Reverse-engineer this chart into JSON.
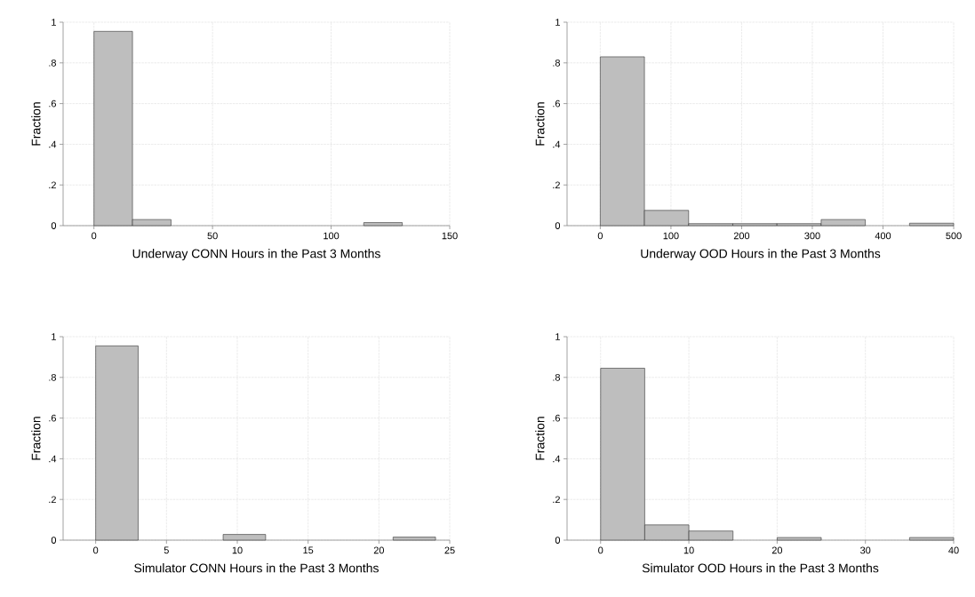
{
  "chart_data": [
    {
      "type": "histogram",
      "xlabel": "Underway CONN Hours in the Past 3 Months",
      "ylabel": "Fraction",
      "color": "#bebebe",
      "grid": true,
      "bins": [
        0,
        16.25,
        32.5,
        48.75,
        65,
        81.25,
        97.5,
        113.75,
        130
      ],
      "values": [
        0.955,
        0.03,
        0,
        0,
        0,
        0,
        0,
        0.015
      ],
      "xlim": [
        -13,
        150
      ],
      "xticks": [
        0,
        50,
        100,
        150
      ],
      "ylim": [
        0,
        1
      ],
      "yticks": [
        0,
        {
          "value": 0.2,
          "label": ".2"
        },
        {
          "value": 0.4,
          "label": ".4"
        },
        {
          "value": 0.6,
          "label": ".6"
        },
        {
          "value": 0.8,
          "label": ".8"
        },
        1
      ]
    },
    {
      "type": "histogram",
      "xlabel": "Underway OOD Hours in the Past 3 Months",
      "ylabel": "Fraction",
      "color": "#bebebe",
      "grid": true,
      "bins": [
        0,
        62.5,
        125,
        187.5,
        250,
        312.5,
        375,
        437.5,
        500
      ],
      "values": [
        0.83,
        0.075,
        0.01,
        0.01,
        0.01,
        0.03,
        0,
        0.012
      ],
      "xlim": [
        -47,
        500
      ],
      "xticks": [
        0,
        100,
        200,
        300,
        400,
        500
      ],
      "ylim": [
        0,
        1
      ],
      "yticks": [
        0,
        {
          "value": 0.2,
          "label": ".2"
        },
        {
          "value": 0.4,
          "label": ".4"
        },
        {
          "value": 0.6,
          "label": ".6"
        },
        {
          "value": 0.8,
          "label": ".8"
        },
        1
      ]
    },
    {
      "type": "histogram",
      "xlabel": "Simulator CONN Hours in the Past 3 Months",
      "ylabel": "Fraction",
      "color": "#bebebe",
      "grid": true,
      "bins": [
        0,
        3,
        6,
        9,
        12,
        15,
        18,
        21,
        24
      ],
      "values": [
        0.955,
        0,
        0,
        0.028,
        0,
        0,
        0,
        0.015
      ],
      "xlim": [
        -2.3,
        25
      ],
      "xticks": [
        0,
        5,
        10,
        15,
        20,
        25
      ],
      "ylim": [
        0,
        1
      ],
      "yticks": [
        0,
        {
          "value": 0.2,
          "label": ".2"
        },
        {
          "value": 0.4,
          "label": ".4"
        },
        {
          "value": 0.6,
          "label": ".6"
        },
        {
          "value": 0.8,
          "label": ".8"
        },
        1
      ]
    },
    {
      "type": "histogram",
      "xlabel": "Simulator OOD Hours in the Past 3 Months",
      "ylabel": "Fraction",
      "color": "#bebebe",
      "grid": true,
      "bins": [
        0,
        5,
        10,
        15,
        20,
        25,
        30,
        35,
        40
      ],
      "values": [
        0.845,
        0.075,
        0.045,
        0,
        0.013,
        0,
        0,
        0.013
      ],
      "xlim": [
        -3.8,
        40
      ],
      "xticks": [
        0,
        10,
        20,
        30,
        40
      ],
      "ylim": [
        0,
        1
      ],
      "yticks": [
        0,
        {
          "value": 0.2,
          "label": ".2"
        },
        {
          "value": 0.4,
          "label": ".4"
        },
        {
          "value": 0.6,
          "label": ".6"
        },
        {
          "value": 0.8,
          "label": ".8"
        },
        1
      ]
    }
  ]
}
